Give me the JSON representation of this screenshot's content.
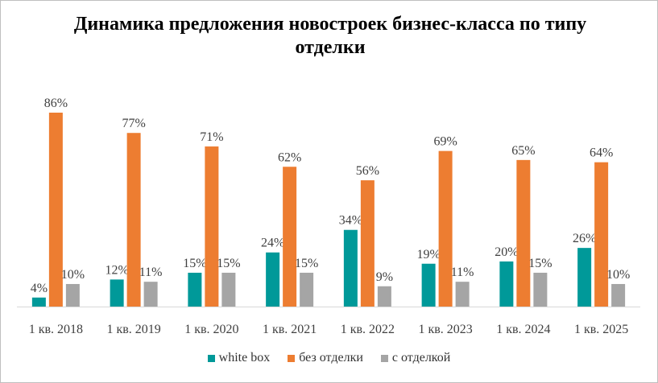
{
  "chart_data": {
    "type": "bar",
    "title": "Динамика предложения новостроек бизнес-класса по типу отделки",
    "categories": [
      "1 кв. 2018",
      "1 кв. 2019",
      "1 кв. 2020",
      "1 кв. 2021",
      "1 кв. 2022",
      "1 кв. 2023",
      "1 кв. 2024",
      "1 кв. 2025"
    ],
    "series": [
      {
        "name": "white box",
        "color": "#009999",
        "values": [
          4,
          12,
          15,
          24,
          34,
          19,
          20,
          26
        ],
        "labels": [
          "4%",
          "12%",
          "15%",
          "24%",
          "34%",
          "19%",
          "20%",
          "26%"
        ]
      },
      {
        "name": "без отделки",
        "color": "#ED7D31",
        "values": [
          86,
          77,
          71,
          62,
          56,
          69,
          65,
          64
        ],
        "labels": [
          "86%",
          "77%",
          "71%",
          "62%",
          "56%",
          "69%",
          "65%",
          "64%"
        ]
      },
      {
        "name": "с отделкой",
        "color": "#A5A5A5",
        "values": [
          10,
          11,
          15,
          15,
          9,
          11,
          15,
          10
        ],
        "labels": [
          "10%",
          "11%",
          "15%",
          "15%",
          "9%",
          "11%",
          "15%",
          "10%"
        ]
      }
    ],
    "xlabel": "",
    "ylabel": "",
    "ylim": [
      0,
      86
    ],
    "grid": false,
    "legend": "bottom"
  }
}
